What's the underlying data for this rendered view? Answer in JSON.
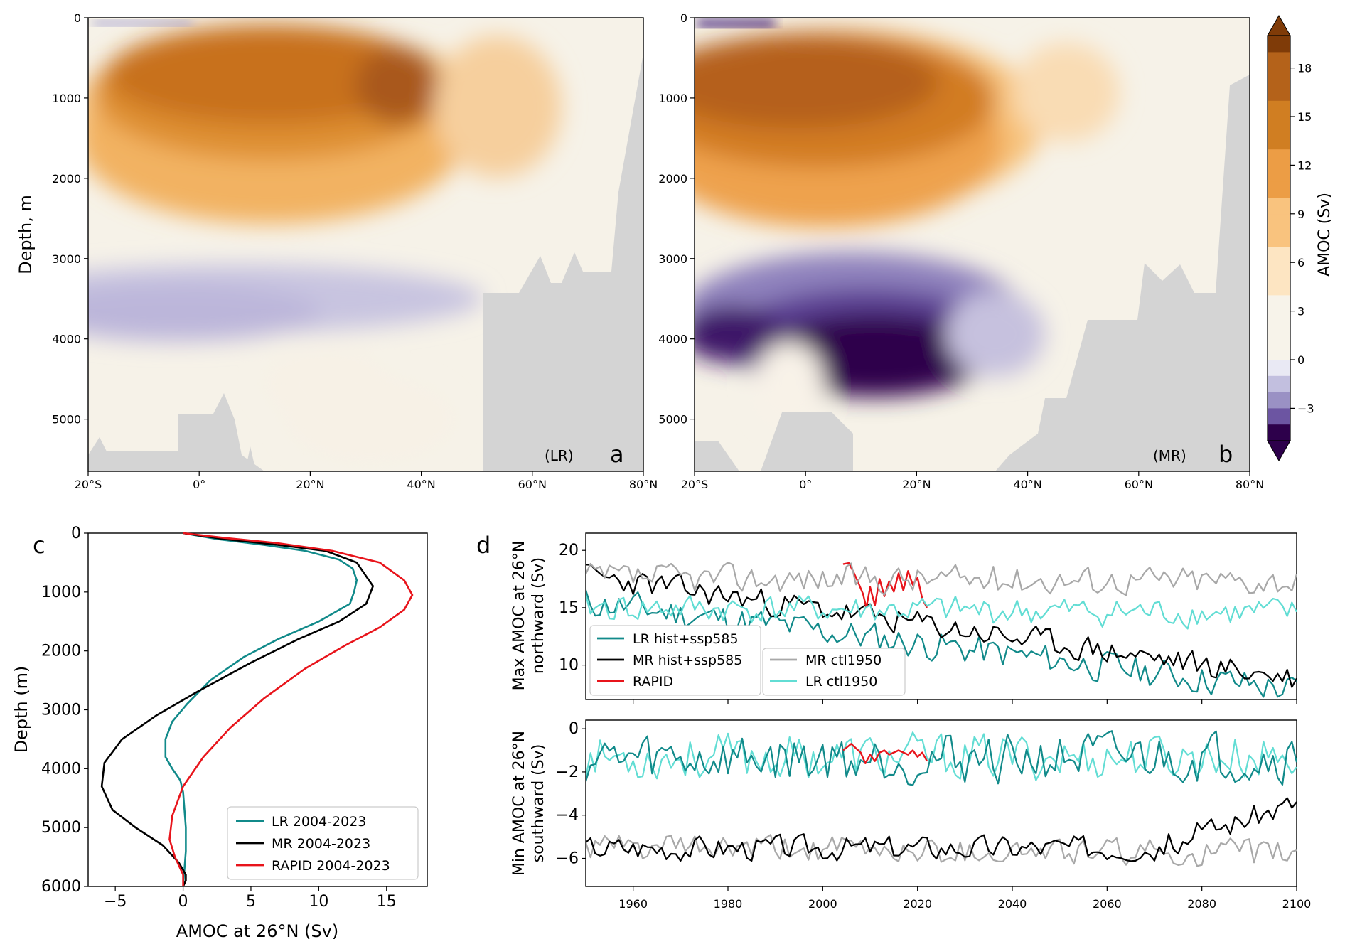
{
  "chart_data": [
    {
      "panel": "a",
      "type": "heatmap",
      "tag": "(LR)",
      "letter": "a",
      "ylabel": "Depth, m",
      "xlabel": "",
      "xlim": [
        -20,
        80
      ],
      "ylim": [
        5650,
        0
      ],
      "x_ticks": [
        "20°S",
        "0°",
        "20°N",
        "40°N",
        "60°N",
        "80°N"
      ],
      "y_ticks": [
        "0",
        "1000",
        "2000",
        "3000",
        "4000",
        "5000"
      ],
      "max_cell": {
        "lat": 36,
        "depth": 900,
        "value": 16
      },
      "abyssal_min": -2.5
    },
    {
      "panel": "b",
      "type": "heatmap",
      "tag": "(MR)",
      "letter": "b",
      "ylabel": "",
      "xlim": [
        -20,
        80
      ],
      "ylim": [
        5650,
        0
      ],
      "x_ticks": [
        "20°S",
        "0°",
        "20°N",
        "40°N",
        "60°N",
        "80°N"
      ],
      "y_ticks": [
        "0",
        "1000",
        "2000",
        "3000",
        "4000",
        "5000"
      ],
      "max_cell": {
        "lat": 10,
        "depth": 900,
        "value": 16
      },
      "abyssal_min": -5
    },
    {
      "panel": "colorbar",
      "type": "heatmap",
      "label": "AMOC (Sv)",
      "ticks": [
        18,
        15,
        12,
        9,
        6,
        3,
        0,
        -3
      ],
      "range": [
        -5,
        20
      ],
      "colors_pos": [
        "#f7f3ea",
        "#fde5c2",
        "#f9c37e",
        "#ec9d45",
        "#d07e22",
        "#b4621a",
        "#7f3b08"
      ],
      "colors_neg": [
        "#e9e9f4",
        "#c2bfdf",
        "#9a91c4",
        "#6c55a2",
        "#2d004b"
      ]
    },
    {
      "panel": "c",
      "type": "line",
      "letter": "c",
      "xlabel": "AMOC at 26°N (Sv)",
      "ylabel": "Depth (m)",
      "xlim": [
        -7,
        18
      ],
      "ylim": [
        6000,
        0
      ],
      "x_ticks": [
        "−5",
        "0",
        "5",
        "10",
        "15"
      ],
      "y_ticks": [
        "0",
        "1000",
        "2000",
        "3000",
        "4000",
        "5000",
        "6000"
      ],
      "legend_position": "lower-right",
      "series": [
        {
          "name": "LR 2004-2023",
          "color": "#118a8a",
          "x": [
            0,
            2.5,
            6,
            9,
            11.5,
            12.5,
            12.8,
            12.6,
            12.3,
            10,
            7,
            4.5,
            2,
            0.3,
            -0.8,
            -1.3,
            -1.3,
            -0.8,
            -0.2,
            0,
            0.1,
            0.2,
            0.2,
            0.1,
            0
          ],
          "y": [
            0,
            100,
            200,
            300,
            450,
            600,
            800,
            1000,
            1200,
            1500,
            1800,
            2100,
            2500,
            2900,
            3200,
            3500,
            3800,
            4000,
            4200,
            4400,
            4700,
            5000,
            5400,
            5700,
            6000
          ]
        },
        {
          "name": "MR 2004-2023",
          "color": "#000000",
          "x": [
            0,
            3,
            7,
            10.5,
            12.8,
            14.0,
            13.5,
            11.5,
            8.5,
            5,
            1,
            -2,
            -4.5,
            -5.8,
            -6.0,
            -5.2,
            -3.5,
            -1.5,
            -0.3,
            0.2,
            0.2,
            0
          ],
          "y": [
            0,
            100,
            200,
            300,
            500,
            900,
            1200,
            1500,
            1800,
            2200,
            2700,
            3100,
            3500,
            3900,
            4300,
            4700,
            5000,
            5300,
            5600,
            5800,
            5900,
            6000
          ]
        },
        {
          "name": "RAPID 2004-2023",
          "color": "#e8141b",
          "x": [
            0,
            3,
            7,
            11,
            14.5,
            16.3,
            16.9,
            16.3,
            14.5,
            12,
            9,
            6,
            3.5,
            1.5,
            0,
            -0.8,
            -1.0,
            -0.6,
            0,
            0
          ],
          "y": [
            0,
            80,
            170,
            300,
            500,
            800,
            1050,
            1300,
            1600,
            1900,
            2300,
            2800,
            3300,
            3800,
            4300,
            4800,
            5200,
            5500,
            5800,
            6000
          ]
        }
      ]
    },
    {
      "panel": "d-top",
      "type": "line",
      "letter": "d",
      "ylabel": "Max AMOC at 26°N northward (Sv)",
      "xlim": [
        1950,
        2100
      ],
      "ylim": [
        7,
        21.5
      ],
      "y_ticks": [
        "10",
        "15",
        "20"
      ],
      "legend_position": "lower-left",
      "series": [
        {
          "name": "LR hist+ssp585",
          "color": "#118a8a",
          "t0": 1950,
          "t1": 2100,
          "base0": 15.5,
          "base1": 7.8,
          "amp": 1.3,
          "seed": 11
        },
        {
          "name": "MR hist+ssp585",
          "color": "#000000",
          "t0": 1950,
          "t1": 2100,
          "base0": 17.8,
          "base1": 8.8,
          "amp": 1.1,
          "seed": 23
        },
        {
          "name": "RAPID",
          "color": "#e8141b",
          "x": [
            2004.3,
            2005.5,
            2006.5,
            2007.5,
            2008.5,
            2009.2,
            2010,
            2011,
            2012,
            2013,
            2014,
            2015,
            2016,
            2017,
            2018,
            2019,
            2020,
            2021,
            2022
          ],
          "y": [
            18.8,
            18.9,
            18.1,
            17.2,
            16.2,
            15.0,
            16.8,
            15.2,
            17.5,
            16.0,
            17.3,
            16.4,
            18.0,
            16.5,
            18.2,
            17.0,
            17.6,
            15.8,
            15.0
          ]
        },
        {
          "name": "MR ctl1950",
          "color": "#a8a8a8",
          "t0": 1950,
          "t1": 2100,
          "base0": 17.6,
          "base1": 17.4,
          "amp": 1.2,
          "seed": 37
        },
        {
          "name": "LR ctl1950",
          "color": "#62ddd4",
          "t0": 1950,
          "t1": 2100,
          "base0": 15.0,
          "base1": 14.5,
          "amp": 1.2,
          "seed": 41
        }
      ]
    },
    {
      "panel": "d-bottom",
      "type": "line",
      "ylabel": "Min AMOC at 26°N southward (Sv)",
      "xlabel": "",
      "xlim": [
        1950,
        2100
      ],
      "ylim": [
        -7.3,
        0.4
      ],
      "x_ticks": [
        "1960",
        "1980",
        "2000",
        "2020",
        "2040",
        "2060",
        "2080",
        "2100"
      ],
      "y_ticks": [
        "0",
        "−2",
        "−4",
        "−6"
      ],
      "series": [
        {
          "name": "LR ctl1950",
          "color": "#62ddd4",
          "t0": 1950,
          "t1": 2100,
          "base0": -1.3,
          "base1": -1.3,
          "amp": 1.0,
          "seed": 53
        },
        {
          "name": "LR hist+ssp585",
          "color": "#118a8a",
          "t0": 1950,
          "t1": 2100,
          "base0": -1.4,
          "base1": -1.3,
          "amp": 1.1,
          "seed": 59
        },
        {
          "name": "MR ctl1950",
          "color": "#a8a8a8",
          "t0": 1950,
          "t1": 2100,
          "base0": -5.5,
          "base1": -5.8,
          "amp": 0.6,
          "seed": 61
        },
        {
          "name": "MR hist+ssp585",
          "color": "#000000",
          "t0": 1950,
          "t1": 2100,
          "base0": -5.5,
          "base1": -5.5,
          "amp": 0.55,
          "seed": 67,
          "late_rise": [
            2070,
            2100,
            -3.2
          ]
        },
        {
          "name": "RAPID",
          "color": "#e8141b",
          "x": [
            2004.3,
            2006,
            2008,
            2009,
            2010,
            2011,
            2012,
            2013,
            2014,
            2016,
            2018,
            2019,
            2020,
            2021,
            2022
          ],
          "y": [
            -1.0,
            -0.7,
            -1.1,
            -1.6,
            -1.2,
            -1.5,
            -1.1,
            -1.0,
            -1.2,
            -1.0,
            -1.2,
            -1.0,
            -1.3,
            -1.1,
            -1.5
          ]
        }
      ]
    }
  ]
}
